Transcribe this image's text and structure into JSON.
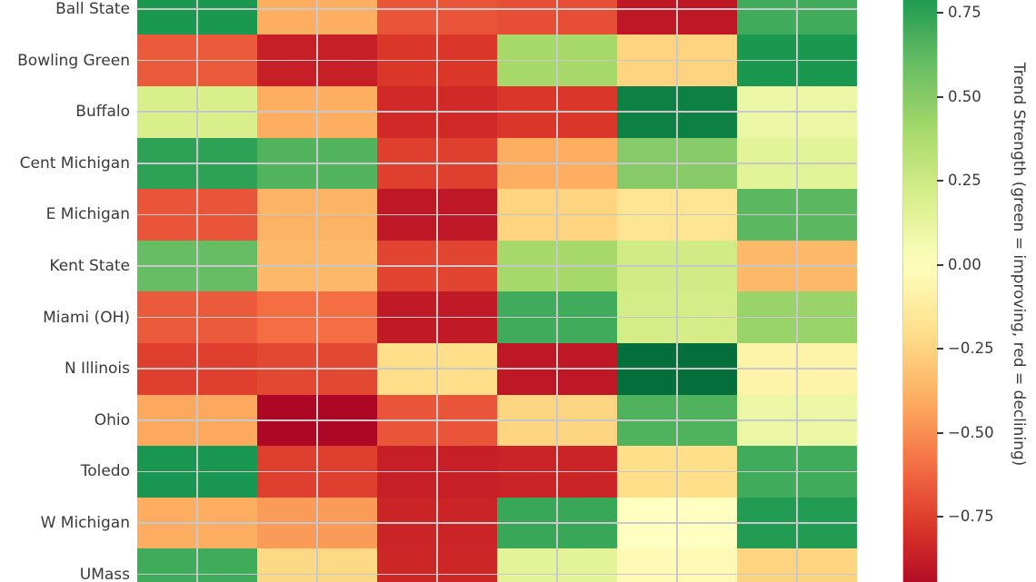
{
  "colors": {
    "background": "#ffffff",
    "grid": "#c8c8c8",
    "text": "#3a3a3a",
    "colorbar_outline": "#cfcfcf"
  },
  "chart_data": {
    "type": "heatmap",
    "rows": [
      "Ball State",
      "Bowling Green",
      "Buffalo",
      "Cent Michigan",
      "E Michigan",
      "Kent State",
      "Miami (OH)",
      "N Illinois",
      "Ohio",
      "Toledo",
      "W Michigan",
      "UMass"
    ],
    "columns": [
      "",
      "",
      "",
      "",
      "",
      ""
    ],
    "x_axis_labels_visible": false,
    "values": [
      [
        0.8,
        -0.4,
        -0.68,
        -0.7,
        -0.9,
        0.7
      ],
      [
        -0.66,
        -0.87,
        -0.78,
        0.4,
        -0.25,
        0.8
      ],
      [
        0.2,
        -0.4,
        -0.83,
        -0.78,
        0.9,
        0.1
      ],
      [
        0.75,
        0.65,
        -0.75,
        -0.4,
        0.5,
        0.15
      ],
      [
        -0.68,
        -0.38,
        -0.9,
        -0.25,
        -0.17,
        0.63
      ],
      [
        0.6,
        -0.36,
        -0.73,
        0.4,
        0.23,
        -0.36
      ],
      [
        -0.66,
        -0.6,
        -0.89,
        0.7,
        0.22,
        0.44
      ],
      [
        -0.75,
        -0.72,
        -0.2,
        -0.9,
        0.97,
        -0.08
      ],
      [
        -0.42,
        -0.97,
        -0.68,
        -0.24,
        0.66,
        0.1
      ],
      [
        0.81,
        -0.75,
        -0.87,
        -0.85,
        -0.2,
        0.7
      ],
      [
        -0.4,
        -0.46,
        -0.85,
        0.72,
        0.0,
        0.78
      ],
      [
        0.7,
        -0.23,
        -0.84,
        0.15,
        -0.04,
        -0.25
      ]
    ],
    "colormap": "RdYlGn",
    "colormap_stops": [
      "#a50026",
      "#d73027",
      "#f46d43",
      "#fdae61",
      "#fee08b",
      "#ffffbf",
      "#d9ef8b",
      "#a6d96a",
      "#66bd63",
      "#1a9850",
      "#006837"
    ],
    "value_range": [
      -1,
      1
    ],
    "grid": true,
    "colorbar": {
      "label": "Trend Strength (green = improving, red = declining)",
      "ticks": [
        0.75,
        0.5,
        0.25,
        0.0,
        -0.25,
        -0.5,
        -0.75
      ],
      "tick_labels": [
        "0.75",
        "0.50",
        "0.25",
        "0.00",
        "−0.25",
        "−0.50",
        "−0.75"
      ],
      "visible_value_top": 0.788,
      "visible_value_bottom": -0.945
    }
  }
}
